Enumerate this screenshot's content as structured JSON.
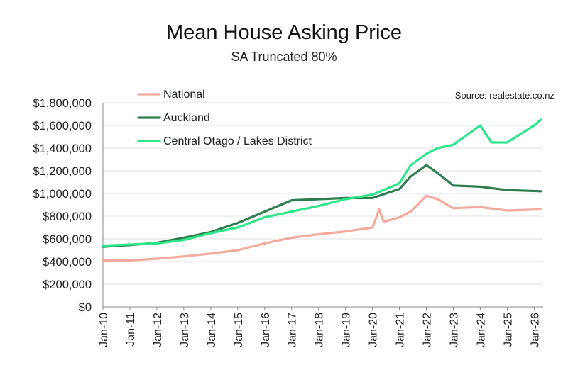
{
  "chart_data": {
    "type": "line",
    "title": "Mean House Asking Price",
    "subtitle": "SA Truncated 80%",
    "source": "Source: realestate.co.nz",
    "xlabel": "",
    "ylabel": "",
    "ylim": [
      0,
      1800000
    ],
    "yticks": [
      0,
      200000,
      400000,
      600000,
      800000,
      1000000,
      1200000,
      1400000,
      1600000,
      1800000
    ],
    "ytick_labels": [
      "$0",
      "$200,000",
      "$400,000",
      "$600,000",
      "$800,000",
      "$1,000,000",
      "$1,200,000",
      "$1,400,000",
      "$1,600,000",
      "$1,800,000"
    ],
    "xticks": [
      "Jan-10",
      "Jan-11",
      "Jan-12",
      "Jan-13",
      "Jan-14",
      "Jan-15",
      "Jan-16",
      "Jan-17",
      "Jan-18",
      "Jan-19",
      "Jan-20",
      "Jan-21",
      "Jan-22",
      "Jan-23",
      "Jan-24",
      "Jan-25",
      "Jan-26"
    ],
    "xlim": [
      "2010-01",
      "2026-05"
    ],
    "grid": "horizontal",
    "legend_position": "top-left",
    "series": [
      {
        "name": "National",
        "color": "#f4aa9c",
        "points": [
          [
            "2010-01",
            410000
          ],
          [
            "2011-01",
            410000
          ],
          [
            "2012-01",
            425000
          ],
          [
            "2013-01",
            445000
          ],
          [
            "2014-01",
            470000
          ],
          [
            "2015-01",
            500000
          ],
          [
            "2016-01",
            560000
          ],
          [
            "2017-01",
            610000
          ],
          [
            "2018-01",
            640000
          ],
          [
            "2019-01",
            665000
          ],
          [
            "2020-01",
            700000
          ],
          [
            "2020-04",
            860000
          ],
          [
            "2020-06",
            750000
          ],
          [
            "2021-01",
            790000
          ],
          [
            "2021-06",
            840000
          ],
          [
            "2022-01",
            980000
          ],
          [
            "2022-06",
            950000
          ],
          [
            "2023-01",
            870000
          ],
          [
            "2024-01",
            880000
          ],
          [
            "2025-01",
            850000
          ],
          [
            "2026-04",
            860000
          ]
        ]
      },
      {
        "name": "Auckland",
        "color": "#2e7d4f",
        "points": [
          [
            "2010-01",
            530000
          ],
          [
            "2011-01",
            545000
          ],
          [
            "2012-01",
            565000
          ],
          [
            "2013-01",
            610000
          ],
          [
            "2014-01",
            660000
          ],
          [
            "2015-01",
            740000
          ],
          [
            "2016-01",
            840000
          ],
          [
            "2017-01",
            940000
          ],
          [
            "2018-01",
            950000
          ],
          [
            "2019-01",
            960000
          ],
          [
            "2020-01",
            960000
          ],
          [
            "2021-01",
            1040000
          ],
          [
            "2021-06",
            1150000
          ],
          [
            "2022-01",
            1250000
          ],
          [
            "2022-06",
            1180000
          ],
          [
            "2023-01",
            1070000
          ],
          [
            "2024-01",
            1060000
          ],
          [
            "2025-01",
            1030000
          ],
          [
            "2026-04",
            1020000
          ]
        ]
      },
      {
        "name": "Central Otago / Lakes District",
        "color": "#2ee68a",
        "points": [
          [
            "2010-01",
            540000
          ],
          [
            "2011-01",
            550000
          ],
          [
            "2012-01",
            560000
          ],
          [
            "2013-01",
            590000
          ],
          [
            "2014-01",
            650000
          ],
          [
            "2015-01",
            700000
          ],
          [
            "2016-01",
            790000
          ],
          [
            "2017-01",
            840000
          ],
          [
            "2018-01",
            890000
          ],
          [
            "2019-01",
            950000
          ],
          [
            "2020-01",
            990000
          ],
          [
            "2021-01",
            1090000
          ],
          [
            "2021-06",
            1250000
          ],
          [
            "2022-01",
            1350000
          ],
          [
            "2022-06",
            1400000
          ],
          [
            "2023-01",
            1430000
          ],
          [
            "2024-01",
            1600000
          ],
          [
            "2024-06",
            1450000
          ],
          [
            "2025-01",
            1450000
          ],
          [
            "2026-01",
            1600000
          ],
          [
            "2026-04",
            1650000
          ]
        ]
      }
    ]
  }
}
